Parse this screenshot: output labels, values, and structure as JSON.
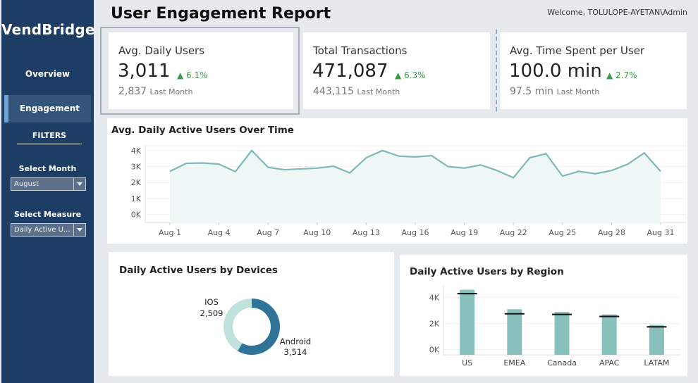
{
  "sidebar": {
    "brand": "VendBridge",
    "nav": [
      {
        "label": "Overview",
        "active": false
      },
      {
        "label": "Engagement",
        "active": true
      }
    ],
    "filters_heading": "FILTERS",
    "month_filter": {
      "label": "Select Month",
      "value": "August"
    },
    "measure_filter": {
      "label": "Select  Measure",
      "value": "Daily Active U..."
    }
  },
  "header": {
    "title": "User Engagement Report",
    "welcome": "Welcome, TOLULOPE-AYETAN\\Admin"
  },
  "kpis": [
    {
      "title": "Avg. Daily Users",
      "value": "3,011",
      "change": "▲ 6.1%",
      "prev_value": "2,837",
      "prev_label": "Last Month"
    },
    {
      "title": "Total Transactions",
      "value": "471,087",
      "change": "▲ 6.3%",
      "prev_value": "443,115",
      "prev_label": "Last Month"
    },
    {
      "title": "Avg. Time Spent per User",
      "value": "100.0 min",
      "change": "▲ 2.7%",
      "prev_value": "97.5 min",
      "prev_label": "Last Month"
    }
  ],
  "colors": {
    "sidebar": "#1d3d64",
    "line": "#7fb8b8",
    "line_fill": "#eef6f6",
    "bar": "#88c0bb",
    "donut_android": "#2f7398",
    "donut_ios": "#bfe3dc",
    "positive": "#3a9a4a"
  },
  "chart_data": [
    {
      "type": "line",
      "title": "Avg. Daily Active Users Over Time",
      "x": [
        1,
        2,
        3,
        4,
        5,
        6,
        7,
        8,
        9,
        10,
        11,
        12,
        13,
        14,
        15,
        16,
        17,
        18,
        19,
        20,
        21,
        22,
        23,
        24,
        25,
        26,
        27,
        28,
        29,
        30,
        31
      ],
      "y": [
        2700,
        3200,
        3220,
        3150,
        2680,
        4000,
        2950,
        2800,
        2850,
        2900,
        3020,
        2600,
        3550,
        4000,
        3650,
        3600,
        3680,
        3000,
        2900,
        3100,
        2750,
        2300,
        3550,
        3800,
        2400,
        2700,
        2550,
        2750,
        3150,
        3850,
        2700
      ],
      "x_tick_labels": [
        "Aug 1",
        "Aug 4",
        "Aug 7",
        "Aug 10",
        "Aug 13",
        "Aug 16",
        "Aug 19",
        "Aug 22",
        "Aug 25",
        "Aug 28",
        "Aug 31"
      ],
      "x_tick_days": [
        1,
        4,
        7,
        10,
        13,
        16,
        19,
        22,
        25,
        28,
        31
      ],
      "y_ticks": [
        0,
        1000,
        2000,
        3000,
        4000
      ],
      "y_tick_labels": [
        "0K",
        "1K",
        "2K",
        "3K",
        "4K"
      ],
      "ylim": [
        -500,
        4300
      ]
    },
    {
      "type": "pie",
      "title": "Daily Active Users by Devices",
      "slices": [
        {
          "label": "Android",
          "value": 3514,
          "display": "3,514"
        },
        {
          "label": "IOS",
          "value": 2509,
          "display": "2,509"
        }
      ]
    },
    {
      "type": "bar",
      "title": "Daily Active Users by Region",
      "categories": [
        "US",
        "EMEA",
        "Canada",
        "APAC",
        "LATAM"
      ],
      "values": [
        4600,
        3100,
        2900,
        2700,
        1900
      ],
      "reference_values": [
        4300,
        2750,
        2700,
        2550,
        1750
      ],
      "y_ticks": [
        0,
        2000,
        4000
      ],
      "y_tick_labels": [
        "0K",
        "2K",
        "4K"
      ],
      "ylim": [
        -400,
        4900
      ]
    }
  ]
}
